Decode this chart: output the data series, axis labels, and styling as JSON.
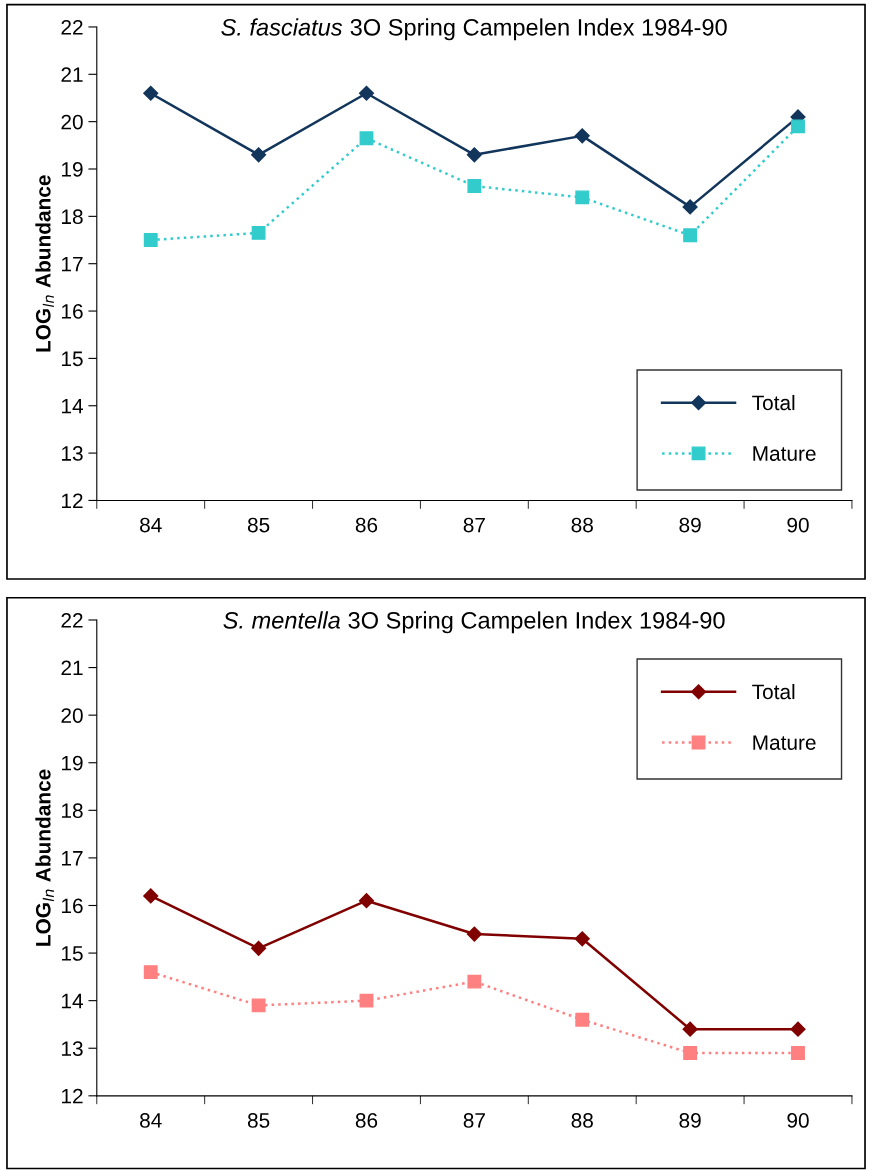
{
  "chart_data": [
    {
      "type": "line",
      "title": "S. fasciatus 3O Spring Campelen Index 1984-90",
      "ylabel": "LOG$_{ln}$ Abundance",
      "categories": [
        "84",
        "85",
        "86",
        "87",
        "88",
        "89",
        "90"
      ],
      "ylim": [
        12,
        22
      ],
      "yticks": [
        12,
        13,
        14,
        15,
        16,
        17,
        18,
        19,
        20,
        21,
        22
      ],
      "grid": false,
      "legend": "bottom right",
      "series": [
        {
          "name": "Total",
          "color": "#12355b",
          "marker": "diamond",
          "line_style": "solid",
          "values": [
            20.6,
            19.3,
            20.6,
            19.3,
            19.7,
            18.2,
            20.1
          ]
        },
        {
          "name": "Mature",
          "color": "#33cccc",
          "marker": "square",
          "line_style": "dotted",
          "values": [
            17.5,
            17.65,
            19.65,
            18.64,
            18.4,
            17.6,
            19.9
          ]
        }
      ]
    },
    {
      "type": "line",
      "title": "S. mentella 3O Spring Campelen Index 1984-90",
      "ylabel": "LOG$_{ln}$ Abundance",
      "categories": [
        "84",
        "85",
        "86",
        "87",
        "88",
        "89",
        "90"
      ],
      "ylim": [
        12,
        22
      ],
      "yticks": [
        12,
        13,
        14,
        15,
        16,
        17,
        18,
        19,
        20,
        21,
        22
      ],
      "grid": false,
      "legend": "top right",
      "series": [
        {
          "name": "Total",
          "color": "#800000",
          "marker": "diamond",
          "line_style": "solid",
          "values": [
            16.2,
            15.1,
            16.1,
            15.4,
            15.3,
            13.4,
            13.4
          ]
        },
        {
          "name": "Mature",
          "color": "#ff8080",
          "marker": "square",
          "line_style": "dotted",
          "values": [
            14.6,
            13.9,
            14.0,
            14.4,
            13.6,
            12.9,
            12.9
          ]
        }
      ]
    }
  ]
}
